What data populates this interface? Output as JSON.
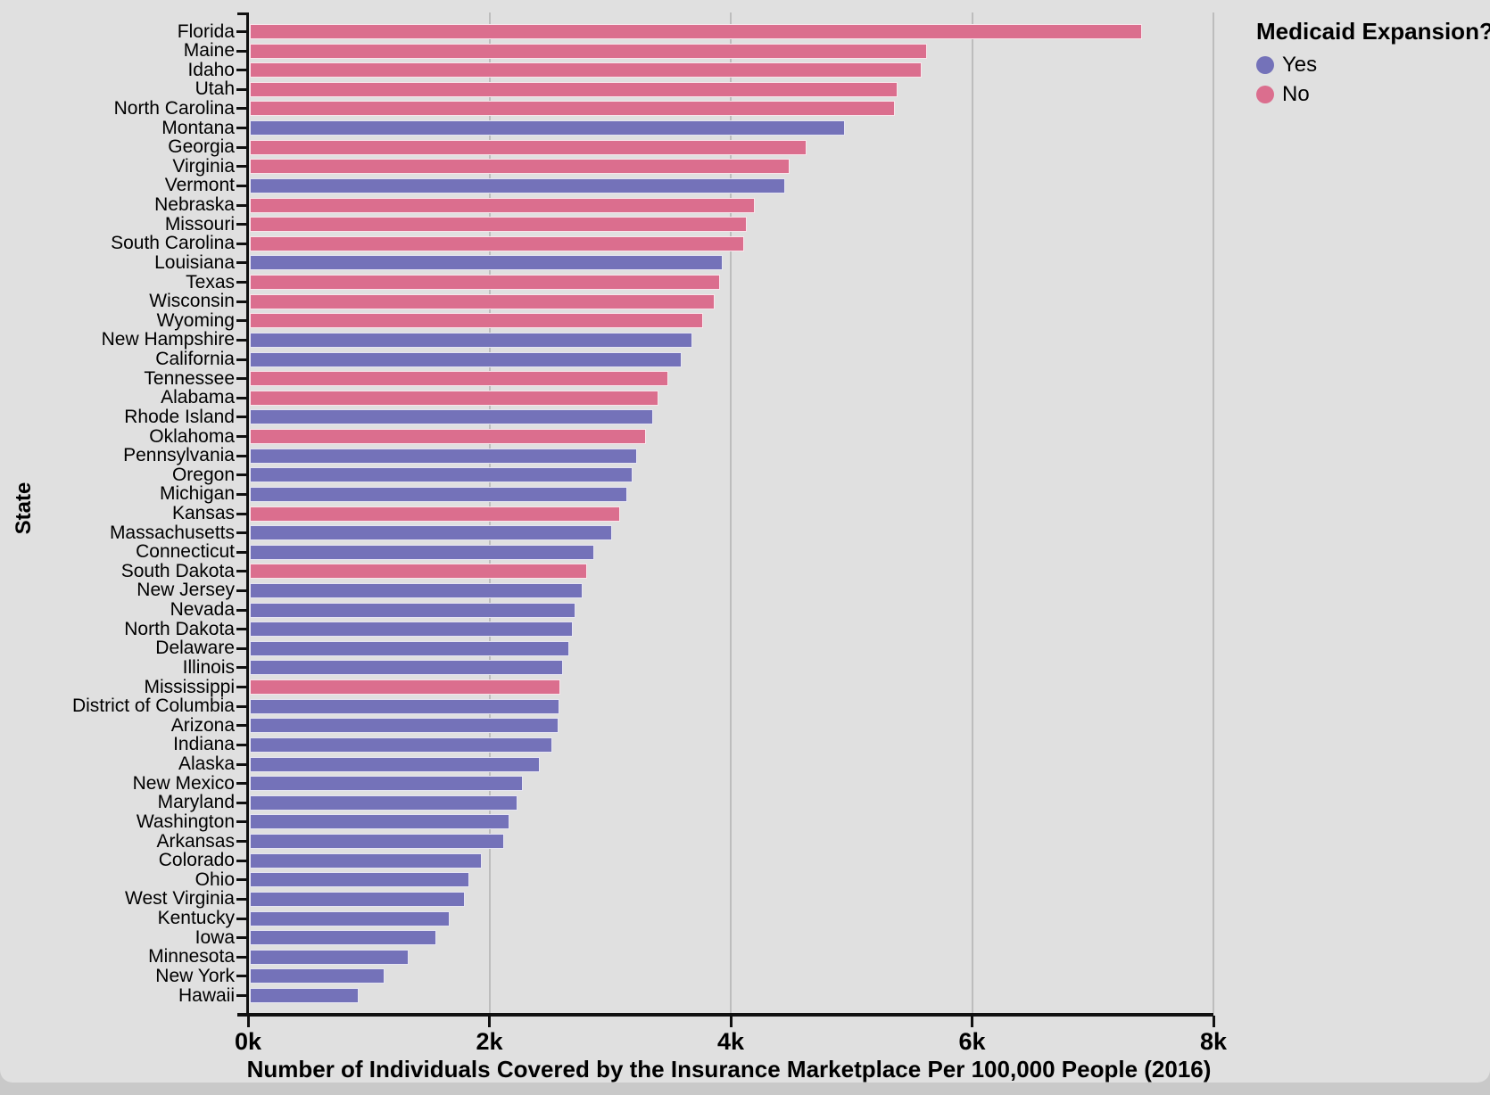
{
  "colors": {
    "yes": "#7472b9",
    "no": "#db6e8e",
    "card_background": "#e0e0e0",
    "outer_background": "#c9c9c9",
    "gridline": "#bdbdbd",
    "axis": "#111111"
  },
  "legend": {
    "title": "Medicaid Expansion?",
    "entries": [
      {
        "label": "Yes",
        "color": "#7472b9"
      },
      {
        "label": "No",
        "color": "#db6e8e"
      }
    ]
  },
  "chart_data": {
    "type": "bar",
    "orientation": "horizontal",
    "xlabel": "Number of Individuals Covered by the Insurance Marketplace Per 100,000 People (2016)",
    "ylabel": "State",
    "xlim": [
      0,
      8000
    ],
    "grid": "on",
    "legend_position": "top-right",
    "series_label": "Medicaid Expansion?",
    "x_ticks": [
      {
        "value": 0,
        "label": "0k"
      },
      {
        "value": 2000,
        "label": "2k"
      },
      {
        "value": 4000,
        "label": "4k"
      },
      {
        "value": 6000,
        "label": "6k"
      },
      {
        "value": 8000,
        "label": "8k"
      }
    ],
    "bars": [
      {
        "state": "Florida",
        "value": 7410,
        "medicaid_expansion": "No"
      },
      {
        "state": "Maine",
        "value": 5630,
        "medicaid_expansion": "No"
      },
      {
        "state": "Idaho",
        "value": 5580,
        "medicaid_expansion": "No"
      },
      {
        "state": "Utah",
        "value": 5380,
        "medicaid_expansion": "No"
      },
      {
        "state": "North Carolina",
        "value": 5360,
        "medicaid_expansion": "No"
      },
      {
        "state": "Montana",
        "value": 4950,
        "medicaid_expansion": "Yes"
      },
      {
        "state": "Georgia",
        "value": 4630,
        "medicaid_expansion": "No"
      },
      {
        "state": "Virginia",
        "value": 4490,
        "medicaid_expansion": "No"
      },
      {
        "state": "Vermont",
        "value": 4450,
        "medicaid_expansion": "Yes"
      },
      {
        "state": "Nebraska",
        "value": 4200,
        "medicaid_expansion": "No"
      },
      {
        "state": "Missouri",
        "value": 4130,
        "medicaid_expansion": "No"
      },
      {
        "state": "South Carolina",
        "value": 4110,
        "medicaid_expansion": "No"
      },
      {
        "state": "Louisiana",
        "value": 3930,
        "medicaid_expansion": "Yes"
      },
      {
        "state": "Texas",
        "value": 3910,
        "medicaid_expansion": "No"
      },
      {
        "state": "Wisconsin",
        "value": 3870,
        "medicaid_expansion": "No"
      },
      {
        "state": "Wyoming",
        "value": 3770,
        "medicaid_expansion": "No"
      },
      {
        "state": "New Hampshire",
        "value": 3680,
        "medicaid_expansion": "Yes"
      },
      {
        "state": "California",
        "value": 3590,
        "medicaid_expansion": "Yes"
      },
      {
        "state": "Tennessee",
        "value": 3480,
        "medicaid_expansion": "No"
      },
      {
        "state": "Alabama",
        "value": 3400,
        "medicaid_expansion": "No"
      },
      {
        "state": "Rhode Island",
        "value": 3360,
        "medicaid_expansion": "Yes"
      },
      {
        "state": "Oklahoma",
        "value": 3300,
        "medicaid_expansion": "No"
      },
      {
        "state": "Pennsylvania",
        "value": 3220,
        "medicaid_expansion": "Yes"
      },
      {
        "state": "Oregon",
        "value": 3190,
        "medicaid_expansion": "Yes"
      },
      {
        "state": "Michigan",
        "value": 3140,
        "medicaid_expansion": "Yes"
      },
      {
        "state": "Kansas",
        "value": 3080,
        "medicaid_expansion": "No"
      },
      {
        "state": "Massachusetts",
        "value": 3020,
        "medicaid_expansion": "Yes"
      },
      {
        "state": "Connecticut",
        "value": 2870,
        "medicaid_expansion": "Yes"
      },
      {
        "state": "South Dakota",
        "value": 2810,
        "medicaid_expansion": "No"
      },
      {
        "state": "New Jersey",
        "value": 2770,
        "medicaid_expansion": "Yes"
      },
      {
        "state": "Nevada",
        "value": 2710,
        "medicaid_expansion": "Yes"
      },
      {
        "state": "North Dakota",
        "value": 2690,
        "medicaid_expansion": "Yes"
      },
      {
        "state": "Delaware",
        "value": 2660,
        "medicaid_expansion": "Yes"
      },
      {
        "state": "Illinois",
        "value": 2610,
        "medicaid_expansion": "Yes"
      },
      {
        "state": "Mississippi",
        "value": 2590,
        "medicaid_expansion": "No"
      },
      {
        "state": "District of Columbia",
        "value": 2580,
        "medicaid_expansion": "Yes"
      },
      {
        "state": "Arizona",
        "value": 2570,
        "medicaid_expansion": "Yes"
      },
      {
        "state": "Indiana",
        "value": 2520,
        "medicaid_expansion": "Yes"
      },
      {
        "state": "Alaska",
        "value": 2420,
        "medicaid_expansion": "Yes"
      },
      {
        "state": "New Mexico",
        "value": 2280,
        "medicaid_expansion": "Yes"
      },
      {
        "state": "Maryland",
        "value": 2230,
        "medicaid_expansion": "Yes"
      },
      {
        "state": "Washington",
        "value": 2170,
        "medicaid_expansion": "Yes"
      },
      {
        "state": "Arkansas",
        "value": 2120,
        "medicaid_expansion": "Yes"
      },
      {
        "state": "Colorado",
        "value": 1940,
        "medicaid_expansion": "Yes"
      },
      {
        "state": "Ohio",
        "value": 1830,
        "medicaid_expansion": "Yes"
      },
      {
        "state": "West Virginia",
        "value": 1800,
        "medicaid_expansion": "Yes"
      },
      {
        "state": "Kentucky",
        "value": 1670,
        "medicaid_expansion": "Yes"
      },
      {
        "state": "Iowa",
        "value": 1560,
        "medicaid_expansion": "Yes"
      },
      {
        "state": "Minnesota",
        "value": 1330,
        "medicaid_expansion": "Yes"
      },
      {
        "state": "New York",
        "value": 1130,
        "medicaid_expansion": "Yes"
      },
      {
        "state": "Hawaii",
        "value": 915,
        "medicaid_expansion": "Yes"
      }
    ]
  }
}
